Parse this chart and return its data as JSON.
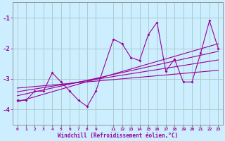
{
  "xlabel": "Windchill (Refroidissement éolien,°C)",
  "ylabel": "",
  "bg_color": "#cceeff",
  "grid_color": "#aacccc",
  "line_color": "#990099",
  "x_data": [
    0,
    1,
    2,
    3,
    4,
    5,
    6,
    7,
    8,
    9,
    11,
    12,
    13,
    14,
    15,
    16,
    17,
    18,
    19,
    20,
    21,
    22,
    23
  ],
  "y_scatter": [
    -3.7,
    -3.7,
    -3.4,
    -3.4,
    -2.8,
    -3.1,
    -3.4,
    -3.7,
    -3.9,
    -3.4,
    -1.7,
    -1.85,
    -2.3,
    -2.4,
    -1.55,
    -1.15,
    -2.75,
    -2.35,
    -3.1,
    -3.1,
    -2.15,
    -1.1,
    -2.0
  ],
  "regression_lines": [
    {
      "x": [
        0,
        23
      ],
      "y": [
        -3.75,
        -1.85
      ]
    },
    {
      "x": [
        0,
        23
      ],
      "y": [
        -3.55,
        -2.1
      ]
    },
    {
      "x": [
        0,
        23
      ],
      "y": [
        -3.42,
        -2.38
      ]
    },
    {
      "x": [
        0,
        23
      ],
      "y": [
        -3.3,
        -2.72
      ]
    }
  ],
  "xlim": [
    -0.5,
    23.5
  ],
  "ylim": [
    -4.5,
    -0.5
  ],
  "yticks": [
    -4,
    -3,
    -2,
    -1
  ],
  "xticks": [
    0,
    1,
    2,
    3,
    4,
    5,
    6,
    7,
    8,
    9,
    11,
    12,
    13,
    14,
    15,
    16,
    17,
    18,
    19,
    20,
    21,
    22,
    23
  ],
  "tick_color": "#990099",
  "label_color": "#990099",
  "spine_color": "#888888"
}
